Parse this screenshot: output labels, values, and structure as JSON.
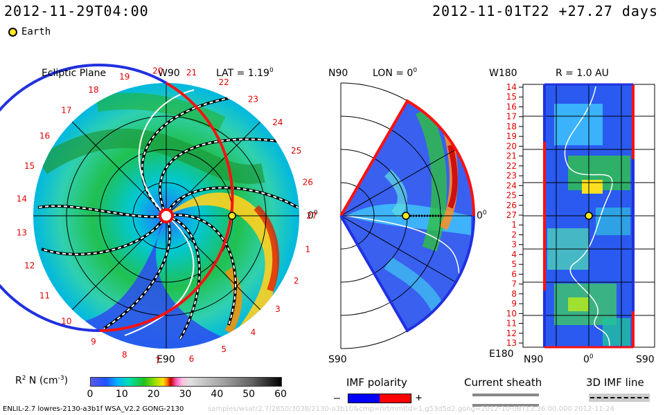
{
  "header": {
    "left_timestamp": "2012-11-29T04:00",
    "right_timestamp": "2012-11-01T22 +27.27 days"
  },
  "legend": {
    "earth_label": "Earth"
  },
  "panel_ecliptic": {
    "title": "Ecliptic Plane",
    "lat_label": "LAT = 1.19",
    "lat_sup": "0",
    "top_label": "W90",
    "bottom_label": "E90",
    "right_label": "0",
    "right_sup": "0",
    "carrington_days": [
      "19",
      "20",
      "21",
      "22",
      "23",
      "24",
      "25",
      "26",
      "27",
      "1",
      "2",
      "3",
      "4",
      "5",
      "6",
      "7",
      "8",
      "9",
      "10",
      "11",
      "12",
      "13",
      "14",
      "15",
      "16",
      "17",
      "18"
    ]
  },
  "panel_meridional": {
    "title": "LON = 0",
    "title_sup": "0",
    "top_label": "N90",
    "bottom_label": "S90",
    "right_label": "0",
    "right_sup": "0"
  },
  "panel_radial": {
    "title": "R = 1.0 AU",
    "top_left_label": "W180",
    "bottom_left_label": "E180",
    "x_left_label": "N90",
    "x_mid_label": "0",
    "x_mid_sup": "0",
    "x_right_label": "S90",
    "day_labels": [
      "14",
      "15",
      "16",
      "17",
      "18",
      "19",
      "20",
      "21",
      "22",
      "23",
      "24",
      "25",
      "26",
      "27",
      "1",
      "2",
      "3",
      "4",
      "5",
      "6",
      "7",
      "8",
      "9",
      "10",
      "11",
      "12",
      "13"
    ]
  },
  "colorbar": {
    "title": "R",
    "title_sup": "2",
    "title_rest": " N (cm",
    "title_exp": "-3",
    "title_end": ")",
    "ticks": [
      "0",
      "10",
      "20",
      "30",
      "40",
      "50",
      "60"
    ],
    "range": [
      0,
      60
    ]
  },
  "imf_legend": {
    "title": "IMF polarity",
    "minus": "–",
    "plus": "+",
    "neg_color": "#0000ff",
    "pos_color": "#ff0000"
  },
  "current_sheath": {
    "title": "Current sheath"
  },
  "imf3d": {
    "title": "3D IMF line"
  },
  "footer": {
    "left": "ENLIL-2.7 lowres-2130-a3b1f WSA_V2.2 GONG-2130",
    "right": "samples/wsatr2.7/2850/3038/2130-a3b1f/&cmp=nrtmmltd=1,g53d5d2.gong=2012-10-08T13:36:00.000    2012-11-24"
  }
}
